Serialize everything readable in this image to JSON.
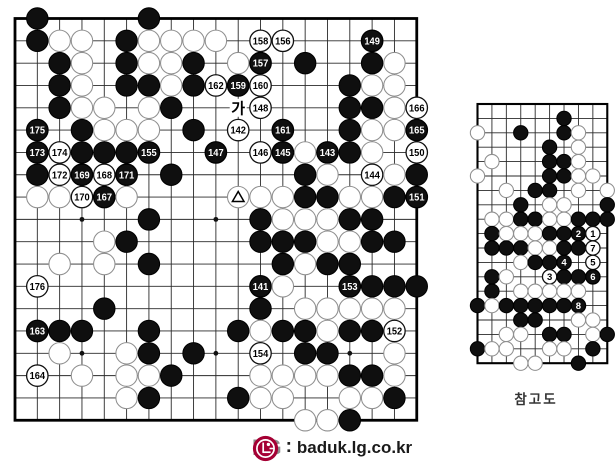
{
  "page": {
    "background": "#ffffff",
    "grid_color": "#2a2a2a",
    "black_stone": "#0f0f0f",
    "white_stone": "#ffffff",
    "plain_white_outline": "#8f8f8f"
  },
  "main_board": {
    "size": 19,
    "star_points": [
      [
        3,
        3
      ],
      [
        9,
        3
      ],
      [
        15,
        3
      ],
      [
        3,
        9
      ],
      [
        9,
        9
      ],
      [
        15,
        9
      ],
      [
        3,
        15
      ],
      [
        9,
        15
      ],
      [
        15,
        15
      ]
    ],
    "ko_marker": {
      "col": 10,
      "row": 4,
      "text": "가"
    },
    "triangle_marked_stone": {
      "col": 10,
      "row": 8
    },
    "stones": [
      [
        1,
        0,
        "b"
      ],
      [
        6,
        0,
        "b"
      ],
      [
        1,
        1,
        "b"
      ],
      [
        2,
        1,
        "w"
      ],
      [
        3,
        1,
        "w"
      ],
      [
        5,
        1,
        "b"
      ],
      [
        6,
        1,
        "w"
      ],
      [
        7,
        1,
        "w"
      ],
      [
        8,
        1,
        "w"
      ],
      [
        9,
        1,
        "w"
      ],
      [
        11,
        1,
        "w",
        "158"
      ],
      [
        12,
        1,
        "w",
        "156"
      ],
      [
        16,
        1,
        "b",
        "149"
      ],
      [
        2,
        2,
        "b"
      ],
      [
        3,
        2,
        "w"
      ],
      [
        5,
        2,
        "b"
      ],
      [
        6,
        2,
        "w"
      ],
      [
        7,
        2,
        "w"
      ],
      [
        8,
        2,
        "b"
      ],
      [
        10,
        2,
        "w"
      ],
      [
        11,
        2,
        "b",
        "157"
      ],
      [
        13,
        2,
        "b"
      ],
      [
        16,
        2,
        "b"
      ],
      [
        17,
        2,
        "w"
      ],
      [
        2,
        3,
        "b"
      ],
      [
        3,
        3,
        "w"
      ],
      [
        5,
        3,
        "b"
      ],
      [
        6,
        3,
        "b"
      ],
      [
        7,
        3,
        "w"
      ],
      [
        8,
        3,
        "b"
      ],
      [
        9,
        3,
        "w",
        "162"
      ],
      [
        10,
        3,
        "b",
        "159"
      ],
      [
        11,
        3,
        "w",
        "160"
      ],
      [
        15,
        3,
        "b"
      ],
      [
        16,
        3,
        "w"
      ],
      [
        17,
        3,
        "w"
      ],
      [
        2,
        4,
        "b"
      ],
      [
        3,
        4,
        "w"
      ],
      [
        4,
        4,
        "w"
      ],
      [
        6,
        4,
        "w"
      ],
      [
        7,
        4,
        "b"
      ],
      [
        11,
        4,
        "w",
        "148"
      ],
      [
        15,
        4,
        "b"
      ],
      [
        16,
        4,
        "b"
      ],
      [
        17,
        4,
        "w"
      ],
      [
        18,
        4,
        "w",
        "166"
      ],
      [
        1,
        5,
        "b",
        "175"
      ],
      [
        3,
        5,
        "b"
      ],
      [
        4,
        5,
        "w"
      ],
      [
        5,
        5,
        "w"
      ],
      [
        6,
        5,
        "w"
      ],
      [
        8,
        5,
        "b"
      ],
      [
        10,
        5,
        "w",
        "142"
      ],
      [
        12,
        5,
        "b",
        "161"
      ],
      [
        15,
        5,
        "b"
      ],
      [
        16,
        5,
        "w"
      ],
      [
        17,
        5,
        "w"
      ],
      [
        18,
        5,
        "b",
        "165"
      ],
      [
        1,
        6,
        "b",
        "173"
      ],
      [
        2,
        6,
        "w",
        "174"
      ],
      [
        3,
        6,
        "b"
      ],
      [
        4,
        6,
        "b"
      ],
      [
        5,
        6,
        "b"
      ],
      [
        6,
        6,
        "b",
        "155"
      ],
      [
        9,
        6,
        "b",
        "147"
      ],
      [
        11,
        6,
        "w",
        "146"
      ],
      [
        12,
        6,
        "b",
        "145"
      ],
      [
        13,
        6,
        "w"
      ],
      [
        14,
        6,
        "b",
        "143"
      ],
      [
        15,
        6,
        "b"
      ],
      [
        16,
        6,
        "w"
      ],
      [
        18,
        6,
        "w",
        "150"
      ],
      [
        1,
        7,
        "b"
      ],
      [
        2,
        7,
        "w",
        "172"
      ],
      [
        3,
        7,
        "b",
        "169"
      ],
      [
        4,
        7,
        "w",
        "168"
      ],
      [
        5,
        7,
        "b",
        "171"
      ],
      [
        7,
        7,
        "b"
      ],
      [
        13,
        7,
        "b"
      ],
      [
        14,
        7,
        "w"
      ],
      [
        16,
        7,
        "w",
        "144"
      ],
      [
        17,
        7,
        "w"
      ],
      [
        18,
        7,
        "b"
      ],
      [
        1,
        8,
        "w"
      ],
      [
        2,
        8,
        "w"
      ],
      [
        3,
        8,
        "w",
        "170"
      ],
      [
        4,
        8,
        "b",
        "167"
      ],
      [
        5,
        8,
        "w"
      ],
      [
        10,
        8,
        "w"
      ],
      [
        11,
        8,
        "w"
      ],
      [
        12,
        8,
        "w"
      ],
      [
        13,
        8,
        "b"
      ],
      [
        14,
        8,
        "b"
      ],
      [
        15,
        8,
        "w"
      ],
      [
        16,
        8,
        "w"
      ],
      [
        17,
        8,
        "b"
      ],
      [
        18,
        8,
        "b",
        "151"
      ],
      [
        6,
        9,
        "b"
      ],
      [
        11,
        9,
        "b"
      ],
      [
        12,
        9,
        "w"
      ],
      [
        13,
        9,
        "w"
      ],
      [
        14,
        9,
        "w"
      ],
      [
        15,
        9,
        "b"
      ],
      [
        16,
        9,
        "b"
      ],
      [
        4,
        10,
        "w"
      ],
      [
        5,
        10,
        "b"
      ],
      [
        11,
        10,
        "b"
      ],
      [
        12,
        10,
        "b"
      ],
      [
        13,
        10,
        "b"
      ],
      [
        14,
        10,
        "w"
      ],
      [
        15,
        10,
        "w"
      ],
      [
        16,
        10,
        "b"
      ],
      [
        17,
        10,
        "b"
      ],
      [
        2,
        11,
        "w"
      ],
      [
        4,
        11,
        "w"
      ],
      [
        6,
        11,
        "b"
      ],
      [
        12,
        11,
        "b"
      ],
      [
        13,
        11,
        "w"
      ],
      [
        14,
        11,
        "b"
      ],
      [
        15,
        11,
        "b"
      ],
      [
        1,
        12,
        "w",
        "176"
      ],
      [
        11,
        12,
        "b",
        "141"
      ],
      [
        12,
        12,
        "w"
      ],
      [
        15,
        12,
        "b",
        "153"
      ],
      [
        16,
        12,
        "b"
      ],
      [
        17,
        12,
        "b"
      ],
      [
        18,
        12,
        "b"
      ],
      [
        4,
        13,
        "b"
      ],
      [
        11,
        13,
        "b"
      ],
      [
        13,
        13,
        "w"
      ],
      [
        14,
        13,
        "w"
      ],
      [
        15,
        13,
        "w"
      ],
      [
        16,
        13,
        "w"
      ],
      [
        17,
        13,
        "w"
      ],
      [
        1,
        14,
        "b",
        "163"
      ],
      [
        2,
        14,
        "b"
      ],
      [
        3,
        14,
        "b"
      ],
      [
        6,
        14,
        "b"
      ],
      [
        10,
        14,
        "b"
      ],
      [
        11,
        14,
        "w"
      ],
      [
        12,
        14,
        "b"
      ],
      [
        13,
        14,
        "b"
      ],
      [
        14,
        14,
        "w"
      ],
      [
        15,
        14,
        "b"
      ],
      [
        16,
        14,
        "b"
      ],
      [
        17,
        14,
        "w",
        "152"
      ],
      [
        2,
        15,
        "w"
      ],
      [
        5,
        15,
        "w"
      ],
      [
        6,
        15,
        "b"
      ],
      [
        8,
        15,
        "b"
      ],
      [
        11,
        15,
        "w",
        "154"
      ],
      [
        13,
        15,
        "b"
      ],
      [
        14,
        15,
        "b"
      ],
      [
        17,
        15,
        "w"
      ],
      [
        1,
        16,
        "w",
        "164"
      ],
      [
        3,
        16,
        "w"
      ],
      [
        5,
        16,
        "w"
      ],
      [
        6,
        16,
        "w"
      ],
      [
        7,
        16,
        "b"
      ],
      [
        11,
        16,
        "w"
      ],
      [
        12,
        16,
        "w"
      ],
      [
        13,
        16,
        "w"
      ],
      [
        14,
        16,
        "w"
      ],
      [
        15,
        16,
        "b"
      ],
      [
        16,
        16,
        "b"
      ],
      [
        17,
        16,
        "w"
      ],
      [
        5,
        17,
        "w"
      ],
      [
        6,
        17,
        "b"
      ],
      [
        10,
        17,
        "b"
      ],
      [
        11,
        17,
        "w"
      ],
      [
        12,
        17,
        "w"
      ],
      [
        15,
        17,
        "w"
      ],
      [
        16,
        17,
        "w"
      ],
      [
        17,
        17,
        "b"
      ],
      [
        13,
        18,
        "w"
      ],
      [
        14,
        18,
        "w"
      ],
      [
        15,
        18,
        "b"
      ]
    ]
  },
  "reference_board": {
    "cols": 10,
    "rows": 19,
    "caption": "참고도",
    "stones": [
      [
        6,
        1,
        "b"
      ],
      [
        0,
        2,
        "w"
      ],
      [
        3,
        2,
        "b"
      ],
      [
        6,
        2,
        "b"
      ],
      [
        7,
        2,
        "w"
      ],
      [
        5,
        3,
        "b"
      ],
      [
        7,
        3,
        "w"
      ],
      [
        1,
        4,
        "w"
      ],
      [
        5,
        4,
        "b"
      ],
      [
        6,
        4,
        "b"
      ],
      [
        7,
        4,
        "w"
      ],
      [
        0,
        5,
        "w"
      ],
      [
        5,
        5,
        "b"
      ],
      [
        6,
        5,
        "b"
      ],
      [
        7,
        5,
        "w"
      ],
      [
        8,
        5,
        "w"
      ],
      [
        2,
        6,
        "w"
      ],
      [
        4,
        6,
        "b"
      ],
      [
        5,
        6,
        "b"
      ],
      [
        7,
        6,
        "w"
      ],
      [
        9,
        6,
        "w"
      ],
      [
        3,
        7,
        "b"
      ],
      [
        5,
        7,
        "w"
      ],
      [
        6,
        7,
        "w"
      ],
      [
        9,
        7,
        "b"
      ],
      [
        1,
        8,
        "w"
      ],
      [
        2,
        8,
        "w"
      ],
      [
        3,
        8,
        "b"
      ],
      [
        4,
        8,
        "b"
      ],
      [
        5,
        8,
        "w"
      ],
      [
        6,
        8,
        "w"
      ],
      [
        7,
        8,
        "b"
      ],
      [
        8,
        8,
        "b"
      ],
      [
        9,
        8,
        "b"
      ],
      [
        1,
        9,
        "b"
      ],
      [
        2,
        9,
        "w"
      ],
      [
        3,
        9,
        "w"
      ],
      [
        4,
        9,
        "w"
      ],
      [
        5,
        9,
        "b"
      ],
      [
        6,
        9,
        "b"
      ],
      [
        7,
        9,
        "b",
        "2"
      ],
      [
        8,
        9,
        "w",
        "1"
      ],
      [
        1,
        10,
        "b"
      ],
      [
        2,
        10,
        "b"
      ],
      [
        3,
        10,
        "b"
      ],
      [
        4,
        10,
        "w"
      ],
      [
        5,
        10,
        "w"
      ],
      [
        6,
        10,
        "b"
      ],
      [
        7,
        10,
        "b"
      ],
      [
        8,
        10,
        "w",
        "7"
      ],
      [
        3,
        11,
        "w"
      ],
      [
        4,
        11,
        "b"
      ],
      [
        5,
        11,
        "b"
      ],
      [
        6,
        11,
        "b",
        "4"
      ],
      [
        8,
        11,
        "w",
        "5"
      ],
      [
        1,
        12,
        "b"
      ],
      [
        2,
        12,
        "w"
      ],
      [
        5,
        12,
        "w",
        "3"
      ],
      [
        6,
        12,
        "b"
      ],
      [
        7,
        12,
        "b"
      ],
      [
        8,
        12,
        "b",
        "6"
      ],
      [
        1,
        13,
        "b"
      ],
      [
        3,
        13,
        "w"
      ],
      [
        4,
        13,
        "w"
      ],
      [
        5,
        13,
        "w"
      ],
      [
        6,
        13,
        "w"
      ],
      [
        7,
        13,
        "w"
      ],
      [
        0,
        14,
        "b"
      ],
      [
        1,
        14,
        "w"
      ],
      [
        2,
        14,
        "b"
      ],
      [
        3,
        14,
        "b"
      ],
      [
        4,
        14,
        "b"
      ],
      [
        5,
        14,
        "b"
      ],
      [
        6,
        14,
        "b"
      ],
      [
        7,
        14,
        "b",
        "8"
      ],
      [
        3,
        15,
        "b"
      ],
      [
        4,
        15,
        "b"
      ],
      [
        7,
        15,
        "w"
      ],
      [
        8,
        15,
        "w"
      ],
      [
        2,
        16,
        "w"
      ],
      [
        3,
        16,
        "w"
      ],
      [
        5,
        16,
        "b"
      ],
      [
        6,
        16,
        "b"
      ],
      [
        8,
        16,
        "w"
      ],
      [
        9,
        16,
        "b"
      ],
      [
        0,
        17,
        "b"
      ],
      [
        1,
        17,
        "w"
      ],
      [
        2,
        17,
        "w"
      ],
      [
        5,
        17,
        "w"
      ],
      [
        6,
        17,
        "w"
      ],
      [
        8,
        17,
        "b"
      ],
      [
        3,
        18,
        "w"
      ],
      [
        4,
        18,
        "w"
      ],
      [
        7,
        18,
        "b"
      ]
    ]
  },
  "footer": {
    "lg_label": "LG",
    "separator": ":",
    "url": "baduk.lg.co.kr",
    "emblem_color": "#a50034",
    "lg_text_color": "#8c8c8c",
    "url_color": "#1a1a1a"
  }
}
